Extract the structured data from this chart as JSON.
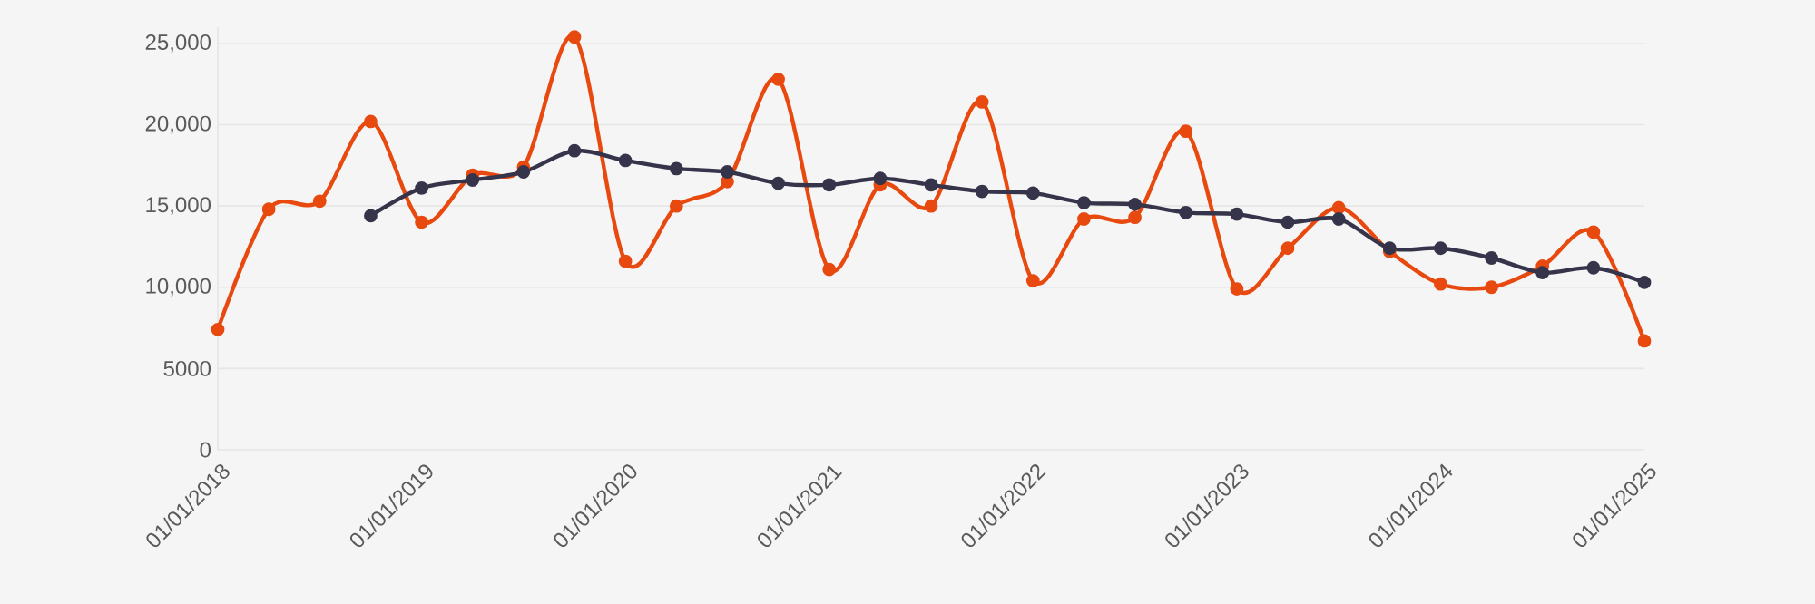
{
  "chart_data": {
    "type": "line",
    "x": [
      "2018-01-01",
      "2018-04-01",
      "2018-07-01",
      "2018-10-01",
      "2019-01-01",
      "2019-04-01",
      "2019-07-01",
      "2019-10-01",
      "2020-01-01",
      "2020-04-01",
      "2020-07-01",
      "2020-10-01",
      "2021-01-01",
      "2021-04-01",
      "2021-07-01",
      "2021-10-01",
      "2022-01-01",
      "2022-04-01",
      "2022-07-01",
      "2022-10-01",
      "2023-01-01",
      "2023-04-01",
      "2023-07-01",
      "2023-10-01",
      "2024-01-01",
      "2024-04-01",
      "2024-07-01",
      "2024-10-01",
      "2025-01-01"
    ],
    "series": [
      {
        "color": "#e8490f",
        "values": [
          7400,
          14800,
          15300,
          20200,
          14000,
          16900,
          17400,
          25400,
          11600,
          15000,
          16500,
          22800,
          11100,
          16300,
          15000,
          21400,
          10400,
          14200,
          14300,
          19600,
          9900,
          12400,
          14900,
          12200,
          10200,
          10000,
          11300,
          13400,
          6700
        ]
      },
      {
        "color": "#35344a",
        "values": [
          null,
          null,
          null,
          14400,
          16100,
          16600,
          17100,
          18400,
          17800,
          17300,
          17100,
          16400,
          16300,
          16700,
          16300,
          15900,
          15800,
          15200,
          15100,
          14600,
          14500,
          14000,
          14200,
          12400,
          12400,
          11800,
          10900,
          11200,
          10300
        ]
      }
    ],
    "xlim": [
      "2018-01-01",
      "2025-01-01"
    ],
    "xticks": [
      {
        "value": "2018-01-01",
        "label": "01/01/2018"
      },
      {
        "value": "2019-01-01",
        "label": "01/01/2019"
      },
      {
        "value": "2020-01-01",
        "label": "01/01/2020"
      },
      {
        "value": "2021-01-01",
        "label": "01/01/2021"
      },
      {
        "value": "2022-01-01",
        "label": "01/01/2022"
      },
      {
        "value": "2023-01-01",
        "label": "01/01/2023"
      },
      {
        "value": "2024-01-01",
        "label": "01/01/2024"
      },
      {
        "value": "2025-01-01",
        "label": "01/01/2025"
      }
    ],
    "ylim": [
      0,
      26000
    ],
    "yticks": [
      0,
      5000,
      {
        "value": 10000,
        "label": "10,000"
      },
      {
        "value": 15000,
        "label": "15,000"
      },
      {
        "value": 20000,
        "label": "20,000"
      },
      {
        "value": 25000,
        "label": "25,000"
      }
    ],
    "grid": "y",
    "marker": "circle",
    "line_style": "solid"
  }
}
